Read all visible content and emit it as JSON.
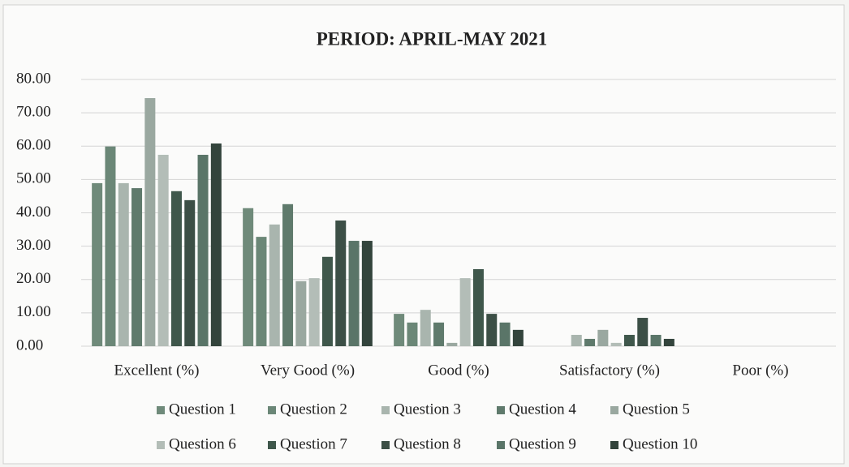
{
  "chart_data": {
    "type": "bar",
    "title": "PERIOD: APRIL-MAY 2021",
    "categories": [
      "Excellent (%)",
      "Very Good (%)",
      "Good (%)",
      "Satisfactory (%)",
      "Poor (%)"
    ],
    "series": [
      {
        "name": "Question 1",
        "color": "#6f8a7a",
        "values": [
          48.9,
          41.4,
          9.7,
          0,
          0
        ]
      },
      {
        "name": "Question 2",
        "color": "#6b8777",
        "values": [
          59.9,
          32.8,
          7.1,
          0,
          0
        ]
      },
      {
        "name": "Question 3",
        "color": "#a9b5ae",
        "values": [
          48.9,
          36.5,
          10.9,
          3.4,
          0
        ]
      },
      {
        "name": "Question 4",
        "color": "#5f7a6c",
        "values": [
          47.4,
          42.6,
          7.1,
          2.2,
          0
        ]
      },
      {
        "name": "Question 5",
        "color": "#9aa8a0",
        "values": [
          74.4,
          19.5,
          1.0,
          4.9,
          0
        ]
      },
      {
        "name": "Question 6",
        "color": "#b3bdb7",
        "values": [
          57.4,
          20.4,
          20.4,
          1.0,
          0
        ]
      },
      {
        "name": "Question 7",
        "color": "#3f574b",
        "values": [
          46.5,
          26.8,
          23.1,
          3.4,
          0
        ]
      },
      {
        "name": "Question 8",
        "color": "#3c4f46",
        "values": [
          43.8,
          37.7,
          9.7,
          8.5,
          0
        ]
      },
      {
        "name": "Question 9",
        "color": "#5a7568",
        "values": [
          57.4,
          31.6,
          7.1,
          3.4,
          0
        ]
      },
      {
        "name": "Question 10",
        "color": "#33443c",
        "values": [
          60.8,
          31.6,
          4.9,
          2.2,
          0
        ]
      }
    ],
    "ylim": [
      0,
      80
    ],
    "yticks": [
      {
        "value": 0,
        "label": "0.00"
      },
      {
        "value": 10,
        "label": "10.00"
      },
      {
        "value": 20,
        "label": "20.00"
      },
      {
        "value": 30,
        "label": "30.00"
      },
      {
        "value": 40,
        "label": "40.00"
      },
      {
        "value": 50,
        "label": "50.00"
      },
      {
        "value": 60,
        "label": "60.00"
      },
      {
        "value": 70,
        "label": "70.00"
      },
      {
        "value": 80,
        "label": "80.00"
      }
    ],
    "grid": true,
    "legend": "bottom"
  }
}
